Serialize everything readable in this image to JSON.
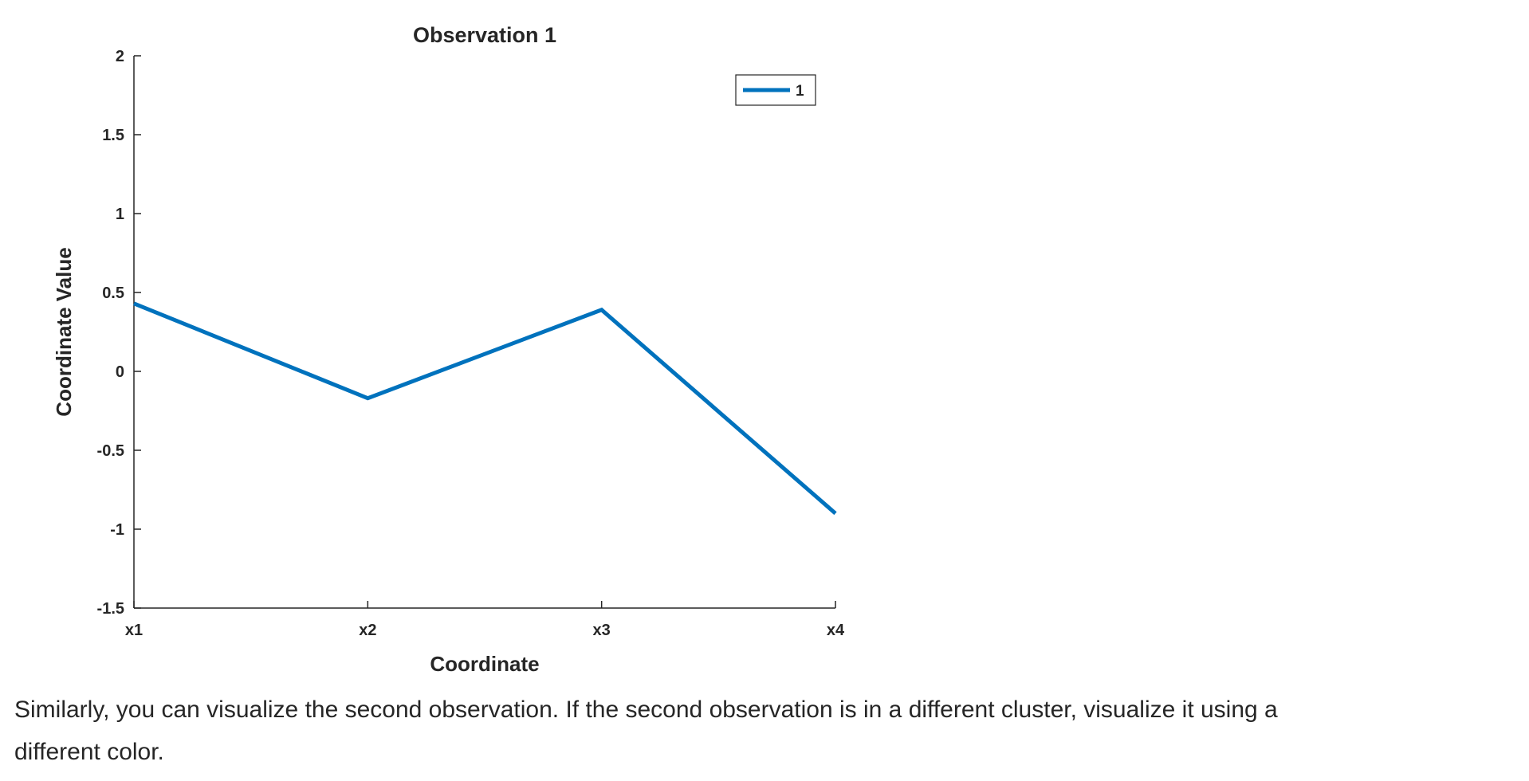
{
  "chart_data": {
    "type": "line",
    "title": "Observation 1",
    "xlabel": "Coordinate",
    "ylabel": "Coordinate Value",
    "categories": [
      "x1",
      "x2",
      "x3",
      "x4"
    ],
    "ylim": [
      -1.5,
      2
    ],
    "yticks": [
      -1.5,
      -1,
      -0.5,
      0,
      0.5,
      1,
      1.5,
      2
    ],
    "ytick_labels": [
      "-1.5",
      "-1",
      "-0.5",
      "0",
      "0.5",
      "1",
      "1.5",
      "2"
    ],
    "series": [
      {
        "name": "1",
        "values": [
          0.43,
          -0.17,
          0.39,
          -0.9
        ],
        "color": "#0072BD"
      }
    ],
    "grid": false,
    "legend": "top-right"
  },
  "body_text": "Similarly, you can visualize the second observation. If the second observation is in a different cluster, visualize it using a different color."
}
